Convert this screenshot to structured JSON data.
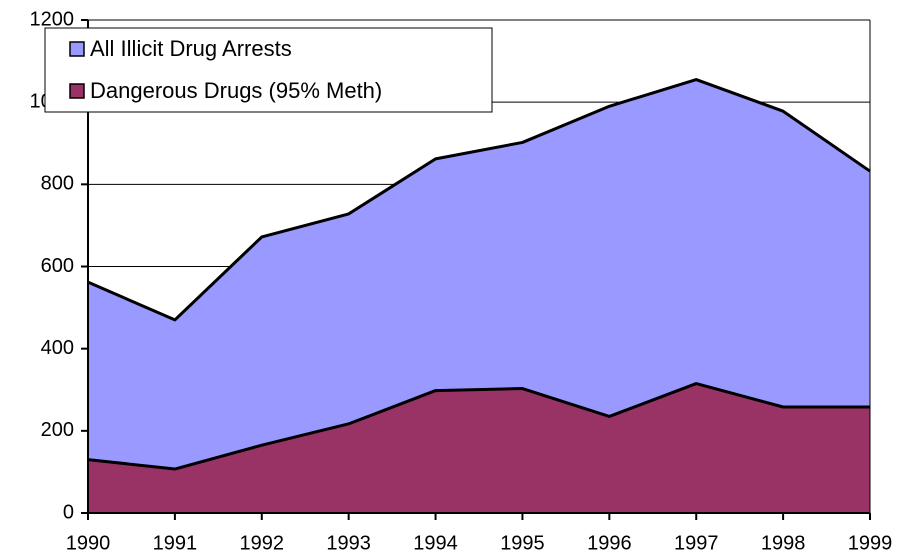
{
  "chart_data": {
    "type": "area",
    "categories": [
      "1990",
      "1991",
      "1992",
      "1993",
      "1994",
      "1995",
      "1996",
      "1997",
      "1998",
      "1999"
    ],
    "series": [
      {
        "name": "All Illicit Drug Arrests",
        "color": "#9999ff",
        "values": [
          562,
          470,
          672,
          728,
          862,
          902,
          990,
          1055,
          978,
          832
        ]
      },
      {
        "name": "Dangerous Drugs (95% Meth)",
        "color": "#993366",
        "values": [
          130,
          107,
          165,
          217,
          298,
          303,
          235,
          315,
          258,
          258
        ]
      }
    ],
    "ylim": [
      0,
      1200
    ],
    "yticks": [
      0,
      200,
      400,
      600,
      800,
      1000,
      1200
    ],
    "grid": true,
    "legend": "top-left"
  }
}
